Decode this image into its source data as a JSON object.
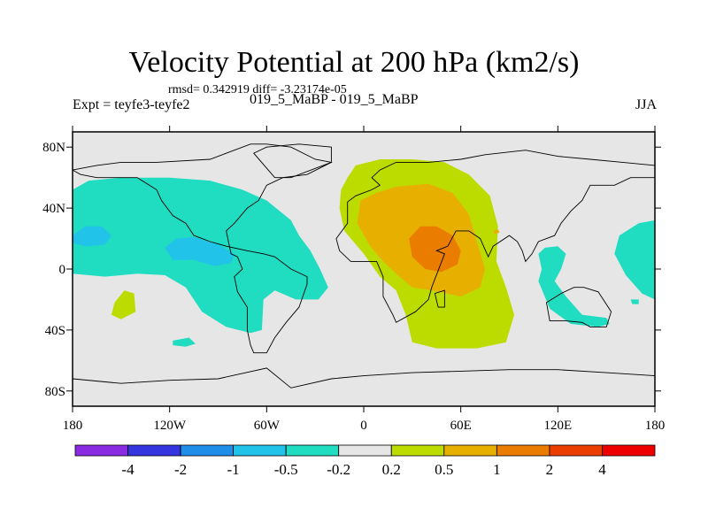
{
  "title": "Velocity Potential at 200 hPa (km2/s)",
  "stats": "rmsd= 0.342919 diff= -3.23174e-05",
  "subtitle": "019_5_MaBP - 019_5_MaBP",
  "left_label": "Expt = teyfe3-teyfe2",
  "right_label": "JJA",
  "chart_data": {
    "type": "heatmap",
    "title": "Velocity Potential at 200 hPa (km2/s)",
    "xlim": [
      -180,
      180
    ],
    "ylim": [
      -90,
      90
    ],
    "x_ticks": [
      {
        "value": -180,
        "label": "180"
      },
      {
        "value": -120,
        "label": "120W"
      },
      {
        "value": -60,
        "label": "60W"
      },
      {
        "value": 0,
        "label": "0"
      },
      {
        "value": 60,
        "label": "60E"
      },
      {
        "value": 120,
        "label": "120E"
      },
      {
        "value": 180,
        "label": "180"
      }
    ],
    "y_ticks": [
      {
        "value": 80,
        "label": "80N"
      },
      {
        "value": 40,
        "label": "40N"
      },
      {
        "value": 0,
        "label": "0"
      },
      {
        "value": -40,
        "label": "40S"
      },
      {
        "value": -80,
        "label": "80S"
      }
    ],
    "colorbar": {
      "levels": [
        "-4",
        "-2",
        "-1",
        "-0.5",
        "-0.2",
        "0.2",
        "0.5",
        "1",
        "2",
        "4"
      ],
      "colors": [
        "#8a2be2",
        "#3535e0",
        "#1f8ee8",
        "#21c3e9",
        "#20dcc0",
        "#e6e6e6",
        "#bcdc00",
        "#e7b000",
        "#ea7d00",
        "#ec3d00",
        "#ee0000"
      ]
    },
    "background_color": "#e6e6e6",
    "regions": [
      {
        "name": "pacific-negative",
        "level": "-0.5 to -0.2",
        "color": "#20dcc0",
        "points": [
          [
            -180,
            52
          ],
          [
            -170,
            58
          ],
          [
            -150,
            60
          ],
          [
            -120,
            60
          ],
          [
            -95,
            58
          ],
          [
            -75,
            52
          ],
          [
            -60,
            45
          ],
          [
            -45,
            32
          ],
          [
            -40,
            22
          ],
          [
            -33,
            12
          ],
          [
            -27,
            0
          ],
          [
            -22,
            -12
          ],
          [
            -28,
            -20
          ],
          [
            -42,
            -20
          ],
          [
            -55,
            -14
          ],
          [
            -62,
            -20
          ],
          [
            -63,
            -40
          ],
          [
            -70,
            -42
          ],
          [
            -85,
            -38
          ],
          [
            -100,
            -28
          ],
          [
            -110,
            -12
          ],
          [
            -123,
            -4
          ],
          [
            -140,
            -3
          ],
          [
            -160,
            -5
          ],
          [
            -180,
            -3
          ]
        ]
      },
      {
        "name": "pacific-blue-west",
        "level": "-1 to -0.5",
        "color": "#21c3e9",
        "points": [
          [
            -180,
            22
          ],
          [
            -172,
            28
          ],
          [
            -162,
            28
          ],
          [
            -156,
            22
          ],
          [
            -160,
            16
          ],
          [
            -172,
            15
          ],
          [
            -180,
            17
          ]
        ]
      },
      {
        "name": "pacific-blue-center",
        "level": "-1 to -0.5",
        "color": "#21c3e9",
        "points": [
          [
            -123,
            14
          ],
          [
            -116,
            20
          ],
          [
            -105,
            21
          ],
          [
            -90,
            16
          ],
          [
            -80,
            10
          ],
          [
            -82,
            4
          ],
          [
            -92,
            2
          ],
          [
            -105,
            6
          ],
          [
            -118,
            6
          ]
        ]
      },
      {
        "name": "south-pacific-green",
        "level": "0.2 to 0.5",
        "color": "#bcdc00",
        "points": [
          [
            -154,
            -22
          ],
          [
            -148,
            -14
          ],
          [
            -142,
            -16
          ],
          [
            -141,
            -28
          ],
          [
            -150,
            -33
          ],
          [
            -156,
            -30
          ]
        ]
      },
      {
        "name": "south-pacific-small",
        "level": "-0.5 to -0.2",
        "color": "#20dcc0",
        "points": [
          [
            -118,
            -47
          ],
          [
            -108,
            -45
          ],
          [
            -104,
            -49
          ],
          [
            -110,
            -51
          ],
          [
            -118,
            -50
          ]
        ]
      },
      {
        "name": "africa-green",
        "level": "0.2 to 0.5",
        "color": "#bcdc00",
        "points": [
          [
            -10,
            60
          ],
          [
            -5,
            68
          ],
          [
            10,
            72
          ],
          [
            30,
            72
          ],
          [
            50,
            70
          ],
          [
            65,
            62
          ],
          [
            78,
            48
          ],
          [
            83,
            28
          ],
          [
            82,
            5
          ],
          [
            88,
            -12
          ],
          [
            93,
            -30
          ],
          [
            88,
            -48
          ],
          [
            70,
            -52
          ],
          [
            45,
            -52
          ],
          [
            30,
            -48
          ],
          [
            26,
            -30
          ],
          [
            20,
            -14
          ],
          [
            10,
            -5
          ],
          [
            0,
            10
          ],
          [
            -12,
            25
          ],
          [
            -15,
            40
          ],
          [
            -14,
            52
          ]
        ]
      },
      {
        "name": "africa-orange",
        "level": "0.5 to 1",
        "color": "#e7b000",
        "points": [
          [
            -2,
            45
          ],
          [
            8,
            50
          ],
          [
            20,
            54
          ],
          [
            40,
            56
          ],
          [
            55,
            50
          ],
          [
            65,
            36
          ],
          [
            70,
            18
          ],
          [
            75,
            0
          ],
          [
            72,
            -12
          ],
          [
            60,
            -18
          ],
          [
            42,
            -14
          ],
          [
            30,
            -12
          ],
          [
            22,
            -5
          ],
          [
            12,
            5
          ],
          [
            4,
            15
          ],
          [
            -4,
            30
          ]
        ]
      },
      {
        "name": "africa-dark-orange",
        "level": "1 to 2",
        "color": "#ea7d00",
        "points": [
          [
            28,
            20
          ],
          [
            35,
            28
          ],
          [
            45,
            28
          ],
          [
            55,
            22
          ],
          [
            60,
            12
          ],
          [
            58,
            3
          ],
          [
            48,
            -2
          ],
          [
            38,
            0
          ],
          [
            30,
            8
          ]
        ]
      },
      {
        "name": "india-small-orange",
        "level": "0.5 to 1",
        "color": "#e7b000",
        "points": [
          [
            80,
            25
          ],
          [
            83,
            26
          ],
          [
            84,
            24
          ],
          [
            81,
            23
          ]
        ]
      },
      {
        "name": "west-pacific-cyan",
        "level": "-0.5 to -0.2",
        "color": "#20dcc0",
        "points": [
          [
            108,
            10
          ],
          [
            112,
            14
          ],
          [
            120,
            15
          ],
          [
            125,
            10
          ],
          [
            122,
            0
          ],
          [
            118,
            -8
          ],
          [
            125,
            -18
          ],
          [
            135,
            -30
          ],
          [
            150,
            -32
          ],
          [
            152,
            -36
          ],
          [
            145,
            -38
          ],
          [
            128,
            -36
          ],
          [
            115,
            -26
          ],
          [
            108,
            -8
          ],
          [
            110,
            0
          ]
        ]
      },
      {
        "name": "east-pacific-edge-cyan",
        "level": "-0.5 to -0.2",
        "color": "#20dcc0",
        "points": [
          [
            158,
            22
          ],
          [
            170,
            30
          ],
          [
            180,
            32
          ],
          [
            180,
            -20
          ],
          [
            172,
            -16
          ],
          [
            162,
            -4
          ],
          [
            155,
            10
          ]
        ]
      },
      {
        "name": "south-small-cyan",
        "level": "-0.5 to -0.2",
        "color": "#20dcc0",
        "points": [
          [
            165,
            -20
          ],
          [
            170,
            -20
          ],
          [
            170,
            -23
          ],
          [
            166,
            -23
          ]
        ]
      }
    ],
    "land": [
      [
        [
          -180,
          65
        ],
        [
          -165,
          68
        ],
        [
          -150,
          70
        ],
        [
          -128,
          70
        ],
        [
          -95,
          72
        ],
        [
          -80,
          78
        ],
        [
          -70,
          82
        ],
        [
          -60,
          82
        ],
        [
          -45,
          80
        ],
        [
          -30,
          72
        ],
        [
          -20,
          70
        ],
        [
          -35,
          62
        ],
        [
          -50,
          60
        ],
        [
          -60,
          55
        ],
        [
          -65,
          45
        ],
        [
          -72,
          40
        ],
        [
          -80,
          30
        ],
        [
          -85,
          25
        ],
        [
          -82,
          10
        ],
        [
          -78,
          8
        ],
        [
          -75,
          0
        ],
        [
          -80,
          -5
        ],
        [
          -78,
          -15
        ],
        [
          -72,
          -25
        ],
        [
          -72,
          -40
        ],
        [
          -70,
          -50
        ],
        [
          -68,
          -55
        ],
        [
          -60,
          -55
        ],
        [
          -55,
          -45
        ],
        [
          -48,
          -35
        ],
        [
          -40,
          -25
        ],
        [
          -35,
          -10
        ],
        [
          -35,
          -5
        ],
        [
          -45,
          0
        ],
        [
          -55,
          8
        ],
        [
          -62,
          10
        ],
        [
          -72,
          12
        ],
        [
          -85,
          15
        ],
        [
          -95,
          18
        ],
        [
          -105,
          22
        ],
        [
          -110,
          30
        ],
        [
          -118,
          35
        ],
        [
          -125,
          45
        ],
        [
          -128,
          52
        ],
        [
          -140,
          60
        ],
        [
          -150,
          60
        ],
        [
          -165,
          60
        ],
        [
          -175,
          62
        ]
      ],
      [
        [
          -10,
          36
        ],
        [
          -10,
          44
        ],
        [
          -5,
          48
        ],
        [
          5,
          52
        ],
        [
          10,
          55
        ],
        [
          5,
          60
        ],
        [
          10,
          65
        ],
        [
          20,
          70
        ],
        [
          40,
          70
        ],
        [
          60,
          72
        ],
        [
          75,
          75
        ],
        [
          100,
          78
        ],
        [
          120,
          74
        ],
        [
          140,
          72
        ],
        [
          160,
          70
        ],
        [
          180,
          68
        ],
        [
          180,
          60
        ],
        [
          165,
          60
        ],
        [
          155,
          55
        ],
        [
          140,
          55
        ],
        [
          135,
          45
        ],
        [
          128,
          38
        ],
        [
          122,
          30
        ],
        [
          118,
          22
        ],
        [
          108,
          18
        ],
        [
          104,
          10
        ],
        [
          100,
          5
        ],
        [
          98,
          12
        ],
        [
          95,
          18
        ],
        [
          90,
          22
        ],
        [
          80,
          15
        ],
        [
          77,
          8
        ],
        [
          72,
          20
        ],
        [
          65,
          25
        ],
        [
          57,
          25
        ],
        [
          52,
          15
        ],
        [
          45,
          12
        ],
        [
          50,
          10
        ],
        [
          42,
          -12
        ],
        [
          40,
          -20
        ],
        [
          32,
          -28
        ],
        [
          20,
          -35
        ],
        [
          18,
          -30
        ],
        [
          12,
          -18
        ],
        [
          12,
          -5
        ],
        [
          8,
          5
        ],
        [
          -8,
          5
        ],
        [
          -15,
          12
        ],
        [
          -17,
          20
        ],
        [
          -10,
          30
        ]
      ],
      [
        [
          113,
          -22
        ],
        [
          115,
          -34
        ],
        [
          125,
          -34
        ],
        [
          135,
          -35
        ],
        [
          140,
          -38
        ],
        [
          150,
          -38
        ],
        [
          153,
          -28
        ],
        [
          145,
          -15
        ],
        [
          136,
          -12
        ],
        [
          130,
          -12
        ],
        [
          122,
          -16
        ]
      ],
      [
        [
          -55,
          60
        ],
        [
          -45,
          60
        ],
        [
          -20,
          70
        ],
        [
          -20,
          80
        ],
        [
          -40,
          82
        ],
        [
          -60,
          80
        ],
        [
          -68,
          76
        ]
      ],
      [
        [
          44,
          -16
        ],
        [
          50,
          -14
        ],
        [
          50,
          -25
        ],
        [
          46,
          -25
        ]
      ],
      [
        [
          -180,
          -72
        ],
        [
          -150,
          -75
        ],
        [
          -120,
          -73
        ],
        [
          -90,
          -72
        ],
        [
          -60,
          -65
        ],
        [
          -45,
          -78
        ],
        [
          -20,
          -72
        ],
        [
          0,
          -70
        ],
        [
          30,
          -68
        ],
        [
          60,
          -67
        ],
        [
          90,
          -66
        ],
        [
          120,
          -66
        ],
        [
          150,
          -68
        ],
        [
          180,
          -70
        ],
        [
          180,
          -90
        ],
        [
          -180,
          -90
        ]
      ]
    ]
  }
}
